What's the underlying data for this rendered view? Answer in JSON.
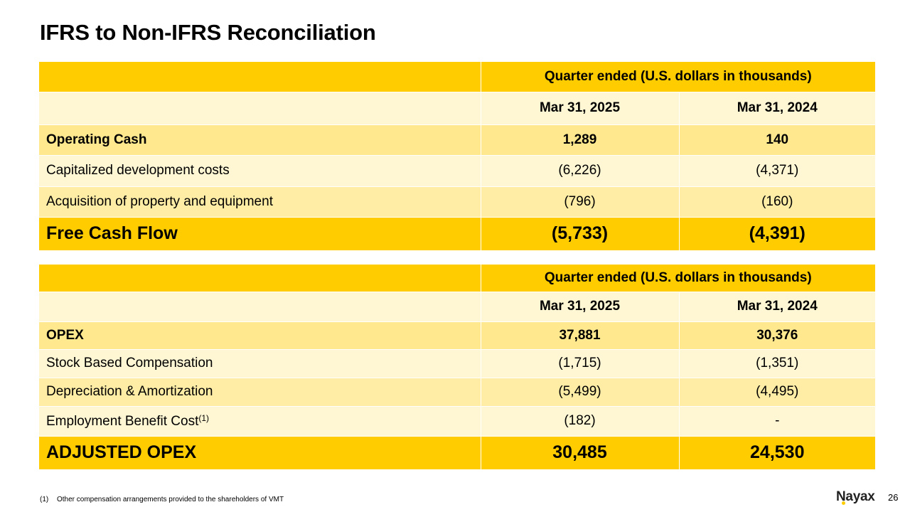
{
  "title": "IFRS to Non-IFRS Reconciliation",
  "table1": {
    "header": "Quarter ended (U.S. dollars in thousands)",
    "col1": "Mar 31, 2025",
    "col2": "Mar 31, 2024",
    "rows": [
      {
        "label": "Operating Cash",
        "v1": "1,289",
        "v2": "140"
      },
      {
        "label": "Capitalized development costs",
        "v1": "(6,226)",
        "v2": "(4,371)"
      },
      {
        "label": "Acquisition of property and equipment",
        "v1": "(796)",
        "v2": "(160)"
      }
    ],
    "total": {
      "label": "Free Cash Flow",
      "v1": "(5,733)",
      "v2": "(4,391)"
    }
  },
  "table2": {
    "header": "Quarter ended (U.S. dollars in thousands)",
    "col1": "Mar 31, 2025",
    "col2": "Mar 31, 2024",
    "rows": [
      {
        "label": "OPEX",
        "v1": "37,881",
        "v2": "30,376"
      },
      {
        "label": "Stock Based Compensation",
        "v1": "(1,715)",
        "v2": "(1,351)"
      },
      {
        "label": "Depreciation & Amortization",
        "v1": "(5,499)",
        "v2": "(4,495)"
      },
      {
        "label": "Employment Benefit Cost",
        "sup": "(1)",
        "v1": "(182)",
        "v2": "-"
      }
    ],
    "total": {
      "label": "ADJUSTED OPEX",
      "v1": "30,485",
      "v2": "24,530"
    }
  },
  "footnote": {
    "num": "(1)",
    "text": "Other compensation arrangements provided to the shareholders of VMT"
  },
  "logo": "Nayax",
  "page_number": "26",
  "colors": {
    "accent": "#FFCC00",
    "row_light": "#FFF6D3",
    "row_mid": "#FFEDA6",
    "row_dark": "#FFE88E"
  }
}
